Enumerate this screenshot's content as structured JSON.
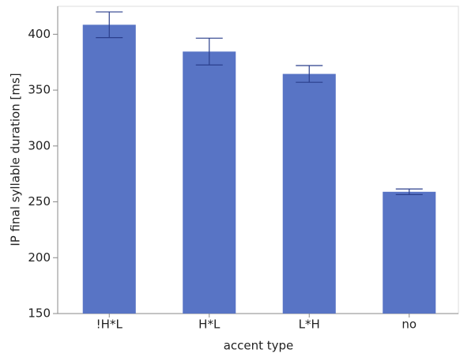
{
  "chart_data": {
    "type": "bar",
    "x_label": "accent type",
    "y_label": "IP final syllable duration [ms]",
    "categories": [
      "!H*L",
      "H*L",
      "L*H",
      "no"
    ],
    "values": [
      408.5,
      384.5,
      364.5,
      259
    ],
    "errors": [
      11.5,
      12,
      7.5,
      2.5
    ],
    "color": "#5874c5",
    "error_color": "#2b3f8c",
    "ylim": [
      150,
      425
    ],
    "yticks": [
      150,
      200,
      250,
      300,
      350,
      400
    ],
    "grid": false
  }
}
